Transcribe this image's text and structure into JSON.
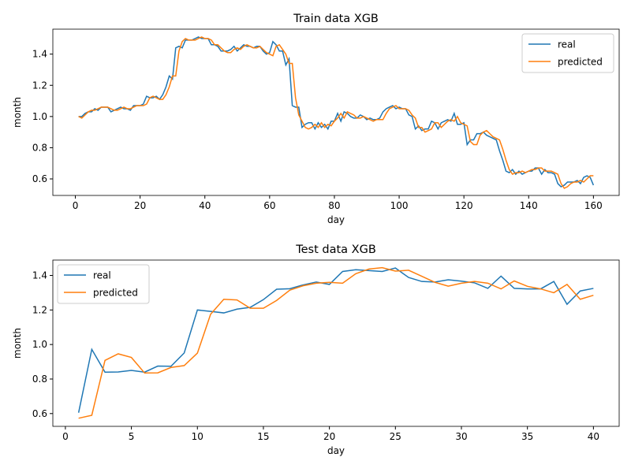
{
  "chart_data": [
    {
      "type": "line",
      "title": "Train data XGB",
      "xlabel": "day",
      "ylabel": "month",
      "legend": "upper right",
      "x": [
        1,
        2,
        3,
        4,
        5,
        6,
        7,
        8,
        9,
        10,
        11,
        12,
        13,
        14,
        15,
        16,
        17,
        18,
        19,
        20,
        21,
        22,
        23,
        24,
        25,
        26,
        27,
        28,
        29,
        30,
        31,
        32,
        33,
        34,
        35,
        36,
        37,
        38,
        39,
        40,
        41,
        42,
        43,
        44,
        45,
        46,
        47,
        48,
        49,
        50,
        51,
        52,
        53,
        54,
        55,
        56,
        57,
        58,
        59,
        60,
        61,
        62,
        63,
        64,
        65,
        66,
        67,
        68,
        69,
        70,
        71,
        72,
        73,
        74,
        75,
        76,
        77,
        78,
        79,
        80,
        81,
        82,
        83,
        84,
        85,
        86,
        87,
        88,
        89,
        90,
        91,
        92,
        93,
        94,
        95,
        96,
        97,
        98,
        99,
        100,
        101,
        102,
        103,
        104,
        105,
        106,
        107,
        108,
        109,
        110,
        111,
        112,
        113,
        114,
        115,
        116,
        117,
        118,
        119,
        120,
        121,
        122,
        123,
        124,
        125,
        126,
        127,
        128,
        129,
        130,
        131,
        132,
        133,
        134,
        135,
        136,
        137,
        138,
        139,
        140,
        141,
        142,
        143,
        144,
        145,
        146,
        147,
        148,
        149,
        150,
        151,
        152,
        153,
        154,
        155,
        156,
        157,
        158,
        159,
        160
      ],
      "series": [
        {
          "name": "real",
          "color": "#1f77b4",
          "values": [
            1.0,
            1.0,
            1.02,
            1.03,
            1.03,
            1.05,
            1.04,
            1.06,
            1.06,
            1.06,
            1.03,
            1.04,
            1.05,
            1.06,
            1.05,
            1.05,
            1.04,
            1.07,
            1.07,
            1.07,
            1.08,
            1.13,
            1.12,
            1.12,
            1.13,
            1.11,
            1.14,
            1.19,
            1.26,
            1.24,
            1.44,
            1.45,
            1.44,
            1.49,
            1.49,
            1.49,
            1.5,
            1.51,
            1.5,
            1.5,
            1.5,
            1.46,
            1.46,
            1.45,
            1.42,
            1.42,
            1.42,
            1.43,
            1.45,
            1.42,
            1.44,
            1.46,
            1.45,
            1.45,
            1.44,
            1.45,
            1.45,
            1.42,
            1.4,
            1.41,
            1.48,
            1.46,
            1.42,
            1.42,
            1.33,
            1.37,
            1.07,
            1.06,
            1.06,
            0.93,
            0.95,
            0.96,
            0.96,
            0.92,
            0.96,
            0.93,
            0.95,
            0.92,
            0.97,
            0.97,
            1.02,
            0.97,
            1.03,
            1.02,
            1.0,
            0.99,
            0.99,
            1.01,
            1.0,
            0.98,
            0.99,
            0.98,
            0.98,
            0.99,
            1.03,
            1.05,
            1.06,
            1.07,
            1.05,
            1.06,
            1.05,
            1.05,
            1.01,
            1.0,
            0.92,
            0.94,
            0.91,
            0.92,
            0.92,
            0.97,
            0.96,
            0.92,
            0.96,
            0.97,
            0.98,
            0.97,
            1.02,
            0.95,
            0.95,
            0.96,
            0.82,
            0.85,
            0.85,
            0.89,
            0.89,
            0.9,
            0.88,
            0.87,
            0.86,
            0.85,
            0.78,
            0.72,
            0.65,
            0.64,
            0.66,
            0.63,
            0.65,
            0.63,
            0.64,
            0.65,
            0.65,
            0.67,
            0.67,
            0.63,
            0.66,
            0.64,
            0.64,
            0.63,
            0.57,
            0.55,
            0.56,
            0.58,
            0.58,
            0.58,
            0.59,
            0.57,
            0.61,
            0.62,
            0.61,
            0.56
          ]
        },
        {
          "name": "predicted",
          "color": "#ff7f0e",
          "values": [
            1.0,
            0.99,
            1.01,
            1.03,
            1.04,
            1.04,
            1.05,
            1.06,
            1.06,
            1.06,
            1.05,
            1.04,
            1.04,
            1.05,
            1.06,
            1.05,
            1.05,
            1.06,
            1.07,
            1.07,
            1.07,
            1.08,
            1.12,
            1.13,
            1.12,
            1.11,
            1.11,
            1.14,
            1.19,
            1.26,
            1.26,
            1.42,
            1.48,
            1.5,
            1.49,
            1.49,
            1.49,
            1.5,
            1.51,
            1.5,
            1.5,
            1.49,
            1.46,
            1.46,
            1.44,
            1.42,
            1.41,
            1.41,
            1.43,
            1.44,
            1.43,
            1.45,
            1.46,
            1.45,
            1.44,
            1.44,
            1.45,
            1.43,
            1.41,
            1.4,
            1.39,
            1.45,
            1.46,
            1.43,
            1.4,
            1.34,
            1.34,
            1.12,
            1.01,
            0.97,
            0.93,
            0.92,
            0.93,
            0.95,
            0.93,
            0.96,
            0.93,
            0.95,
            0.94,
            0.97,
            0.99,
            1.02,
            0.99,
            1.03,
            1.02,
            1.01,
            0.99,
            0.99,
            1.0,
            0.99,
            0.98,
            0.97,
            0.98,
            0.98,
            0.98,
            1.02,
            1.05,
            1.06,
            1.07,
            1.05,
            1.05,
            1.05,
            1.04,
            1.01,
            0.99,
            0.93,
            0.93,
            0.9,
            0.91,
            0.92,
            0.96,
            0.96,
            0.93,
            0.95,
            0.97,
            0.98,
            0.97,
            1.0,
            0.96,
            0.95,
            0.94,
            0.84,
            0.82,
            0.82,
            0.88,
            0.9,
            0.91,
            0.89,
            0.87,
            0.86,
            0.85,
            0.79,
            0.72,
            0.66,
            0.63,
            0.64,
            0.64,
            0.65,
            0.64,
            0.65,
            0.66,
            0.66,
            0.67,
            0.67,
            0.65,
            0.65,
            0.65,
            0.64,
            0.63,
            0.57,
            0.54,
            0.55,
            0.57,
            0.58,
            0.58,
            0.59,
            0.58,
            0.6,
            0.62,
            0.62
          ]
        }
      ],
      "xlim": [
        -6.95,
        167.95
      ],
      "xticks": [
        0,
        20,
        40,
        60,
        80,
        100,
        120,
        140,
        160
      ],
      "ylim": [
        0.494,
        1.56
      ],
      "yticks": [
        0.6,
        0.8,
        {
          "value": 1,
          "label": "1.0"
        },
        1.2,
        1.4
      ]
    },
    {
      "type": "line",
      "title": "Test data XGB",
      "xlabel": "day",
      "ylabel": "month",
      "legend": "upper left",
      "x": [
        1,
        2,
        3,
        4,
        5,
        6,
        7,
        8,
        9,
        10,
        11,
        12,
        13,
        14,
        15,
        16,
        17,
        18,
        19,
        20,
        21,
        22,
        23,
        24,
        25,
        26,
        27,
        28,
        29,
        30,
        31,
        32,
        33,
        34,
        35,
        36,
        37,
        38,
        39,
        40
      ],
      "series": [
        {
          "name": "real",
          "color": "#1f77b4",
          "values": [
            0.605,
            0.972,
            0.84,
            0.841,
            0.85,
            0.84,
            0.875,
            0.874,
            0.951,
            1.2,
            1.192,
            1.183,
            1.205,
            1.215,
            1.26,
            1.32,
            1.323,
            1.345,
            1.362,
            1.348,
            1.423,
            1.433,
            1.428,
            1.423,
            1.443,
            1.388,
            1.365,
            1.362,
            1.375,
            1.367,
            1.357,
            1.325,
            1.396,
            1.325,
            1.322,
            1.322,
            1.365,
            1.233,
            1.31,
            1.325
          ]
        },
        {
          "name": "predicted",
          "color": "#ff7f0e",
          "values": [
            0.573,
            0.59,
            0.908,
            0.946,
            0.925,
            0.835,
            0.836,
            0.867,
            0.878,
            0.95,
            1.175,
            1.262,
            1.258,
            1.21,
            1.21,
            1.255,
            1.315,
            1.34,
            1.355,
            1.36,
            1.355,
            1.41,
            1.437,
            1.445,
            1.425,
            1.43,
            1.395,
            1.36,
            1.338,
            1.355,
            1.365,
            1.355,
            1.322,
            1.368,
            1.337,
            1.322,
            1.3,
            1.348,
            1.262,
            1.285
          ]
        }
      ],
      "xlim": [
        -0.95,
        41.95
      ],
      "xticks": [
        0,
        5,
        10,
        15,
        20,
        25,
        30,
        35,
        40
      ],
      "ylim": [
        0.526,
        1.489
      ],
      "yticks": [
        0.6,
        0.8,
        {
          "value": 1,
          "label": "1.0"
        },
        1.2,
        1.4
      ]
    }
  ]
}
